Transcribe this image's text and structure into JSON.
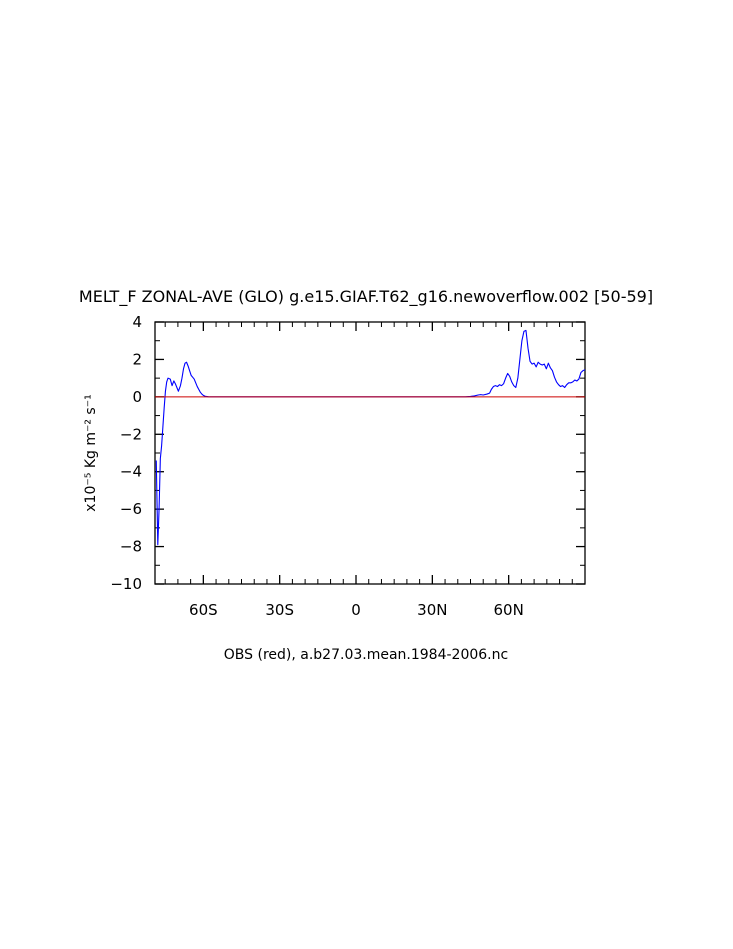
{
  "chart_data": {
    "type": "line",
    "title": "MELT_F ZONAL-AVE (GLO) g.e15.GIAF.T62_g16.newoverflow.002 [50-59]",
    "subtitle": "OBS (red), a.b27.03.mean.1984-2006.nc",
    "ylabel": "x10⁻⁵ Kg m⁻² s⁻¹",
    "xlabel": "",
    "xlim": [
      -79,
      90
    ],
    "ylim": [
      -10,
      4
    ],
    "x_ticks": [
      -60,
      -30,
      0,
      30,
      60
    ],
    "x_tick_labels": [
      "60S",
      "30S",
      "0",
      "30N",
      "60N"
    ],
    "y_ticks": [
      4,
      2,
      0,
      -2,
      -4,
      -6,
      -8,
      -10
    ],
    "y_tick_labels": [
      "4",
      "2",
      "0",
      "−2",
      "−4",
      "−6",
      "−8",
      "−10"
    ],
    "grid": false,
    "colors": {
      "model": "#0000ff",
      "obs": "#cc0000",
      "axes": "#000000"
    },
    "series": [
      {
        "x": [
          -78.5,
          -77.9,
          -77.4,
          -76.9,
          -76.4,
          -75.9,
          -75.4,
          -74.9,
          -74.4,
          -73.9,
          -73.0,
          -72.3,
          -71.6,
          -71.0,
          -70.4,
          -69.8,
          -69.0,
          -68.4,
          -67.8,
          -67.2,
          -66.6,
          -66.0,
          -65.4,
          -64.8,
          -64.2,
          -63.6,
          -63.0,
          -62.4,
          -61.8,
          -61.2,
          -60.6,
          -60.0,
          -59.4,
          -58.8,
          -58.2,
          -57.6,
          -57.0,
          -56.4,
          -55.8,
          -55.2,
          -54.6,
          -54.0,
          -53.4,
          -52.8,
          -52.2,
          -51.6,
          -51.0,
          -50.0,
          -45.0,
          -40.0,
          -30.0,
          -20.0,
          -10.0,
          0.0,
          10.0,
          20.0,
          30.0,
          40.0,
          43.0,
          45.0,
          46.5,
          48.0,
          49.0,
          50.0,
          51.5,
          52.5,
          53.2,
          54.0,
          54.8,
          55.6,
          56.4,
          57.2,
          58.0,
          58.8,
          59.6,
          60.4,
          61.2,
          62.0,
          62.8,
          63.6,
          64.4,
          65.2,
          66.0,
          66.8,
          67.6,
          68.4,
          69.2,
          70.0,
          70.8,
          71.6,
          72.4,
          73.2,
          74.0,
          74.8,
          75.6,
          76.4,
          77.2,
          78.0,
          78.8,
          79.6,
          80.4,
          81.2,
          82.0,
          82.8,
          83.6,
          84.4,
          85.2,
          86.0,
          86.8,
          87.6,
          88.4,
          89.2,
          90.0
        ],
        "y": [
          -3.4,
          -7.9,
          -6.0,
          -3.3,
          -2.6,
          -1.6,
          -0.6,
          0.3,
          0.8,
          1.0,
          0.95,
          0.6,
          0.85,
          0.7,
          0.5,
          0.3,
          0.6,
          1.0,
          1.5,
          1.8,
          1.85,
          1.65,
          1.4,
          1.15,
          1.05,
          0.95,
          0.75,
          0.55,
          0.4,
          0.25,
          0.15,
          0.08,
          0.04,
          0.02,
          0.01,
          0.0,
          0.0,
          0.0,
          0.0,
          0.0,
          0.0,
          0.0,
          0.0,
          0.0,
          0.0,
          0.0,
          0.0,
          0.0,
          0.0,
          0.0,
          0.0,
          0.0,
          0.0,
          0.0,
          0.0,
          0.0,
          0.0,
          0.0,
          0.0,
          0.02,
          0.05,
          0.1,
          0.12,
          0.1,
          0.15,
          0.2,
          0.4,
          0.55,
          0.6,
          0.55,
          0.65,
          0.6,
          0.7,
          1.0,
          1.25,
          1.1,
          0.8,
          0.6,
          0.5,
          1.0,
          2.0,
          3.0,
          3.5,
          3.55,
          2.6,
          1.9,
          1.75,
          1.8,
          1.6,
          1.85,
          1.75,
          1.7,
          1.75,
          1.5,
          1.8,
          1.55,
          1.4,
          1.05,
          0.8,
          0.65,
          0.55,
          0.6,
          0.5,
          0.65,
          0.75,
          0.75,
          0.8,
          0.9,
          0.85,
          0.95,
          1.3,
          1.4,
          1.45
        ]
      },
      {
        "x": [
          -79,
          90
        ],
        "y": [
          0.0,
          0.0
        ]
      }
    ]
  }
}
